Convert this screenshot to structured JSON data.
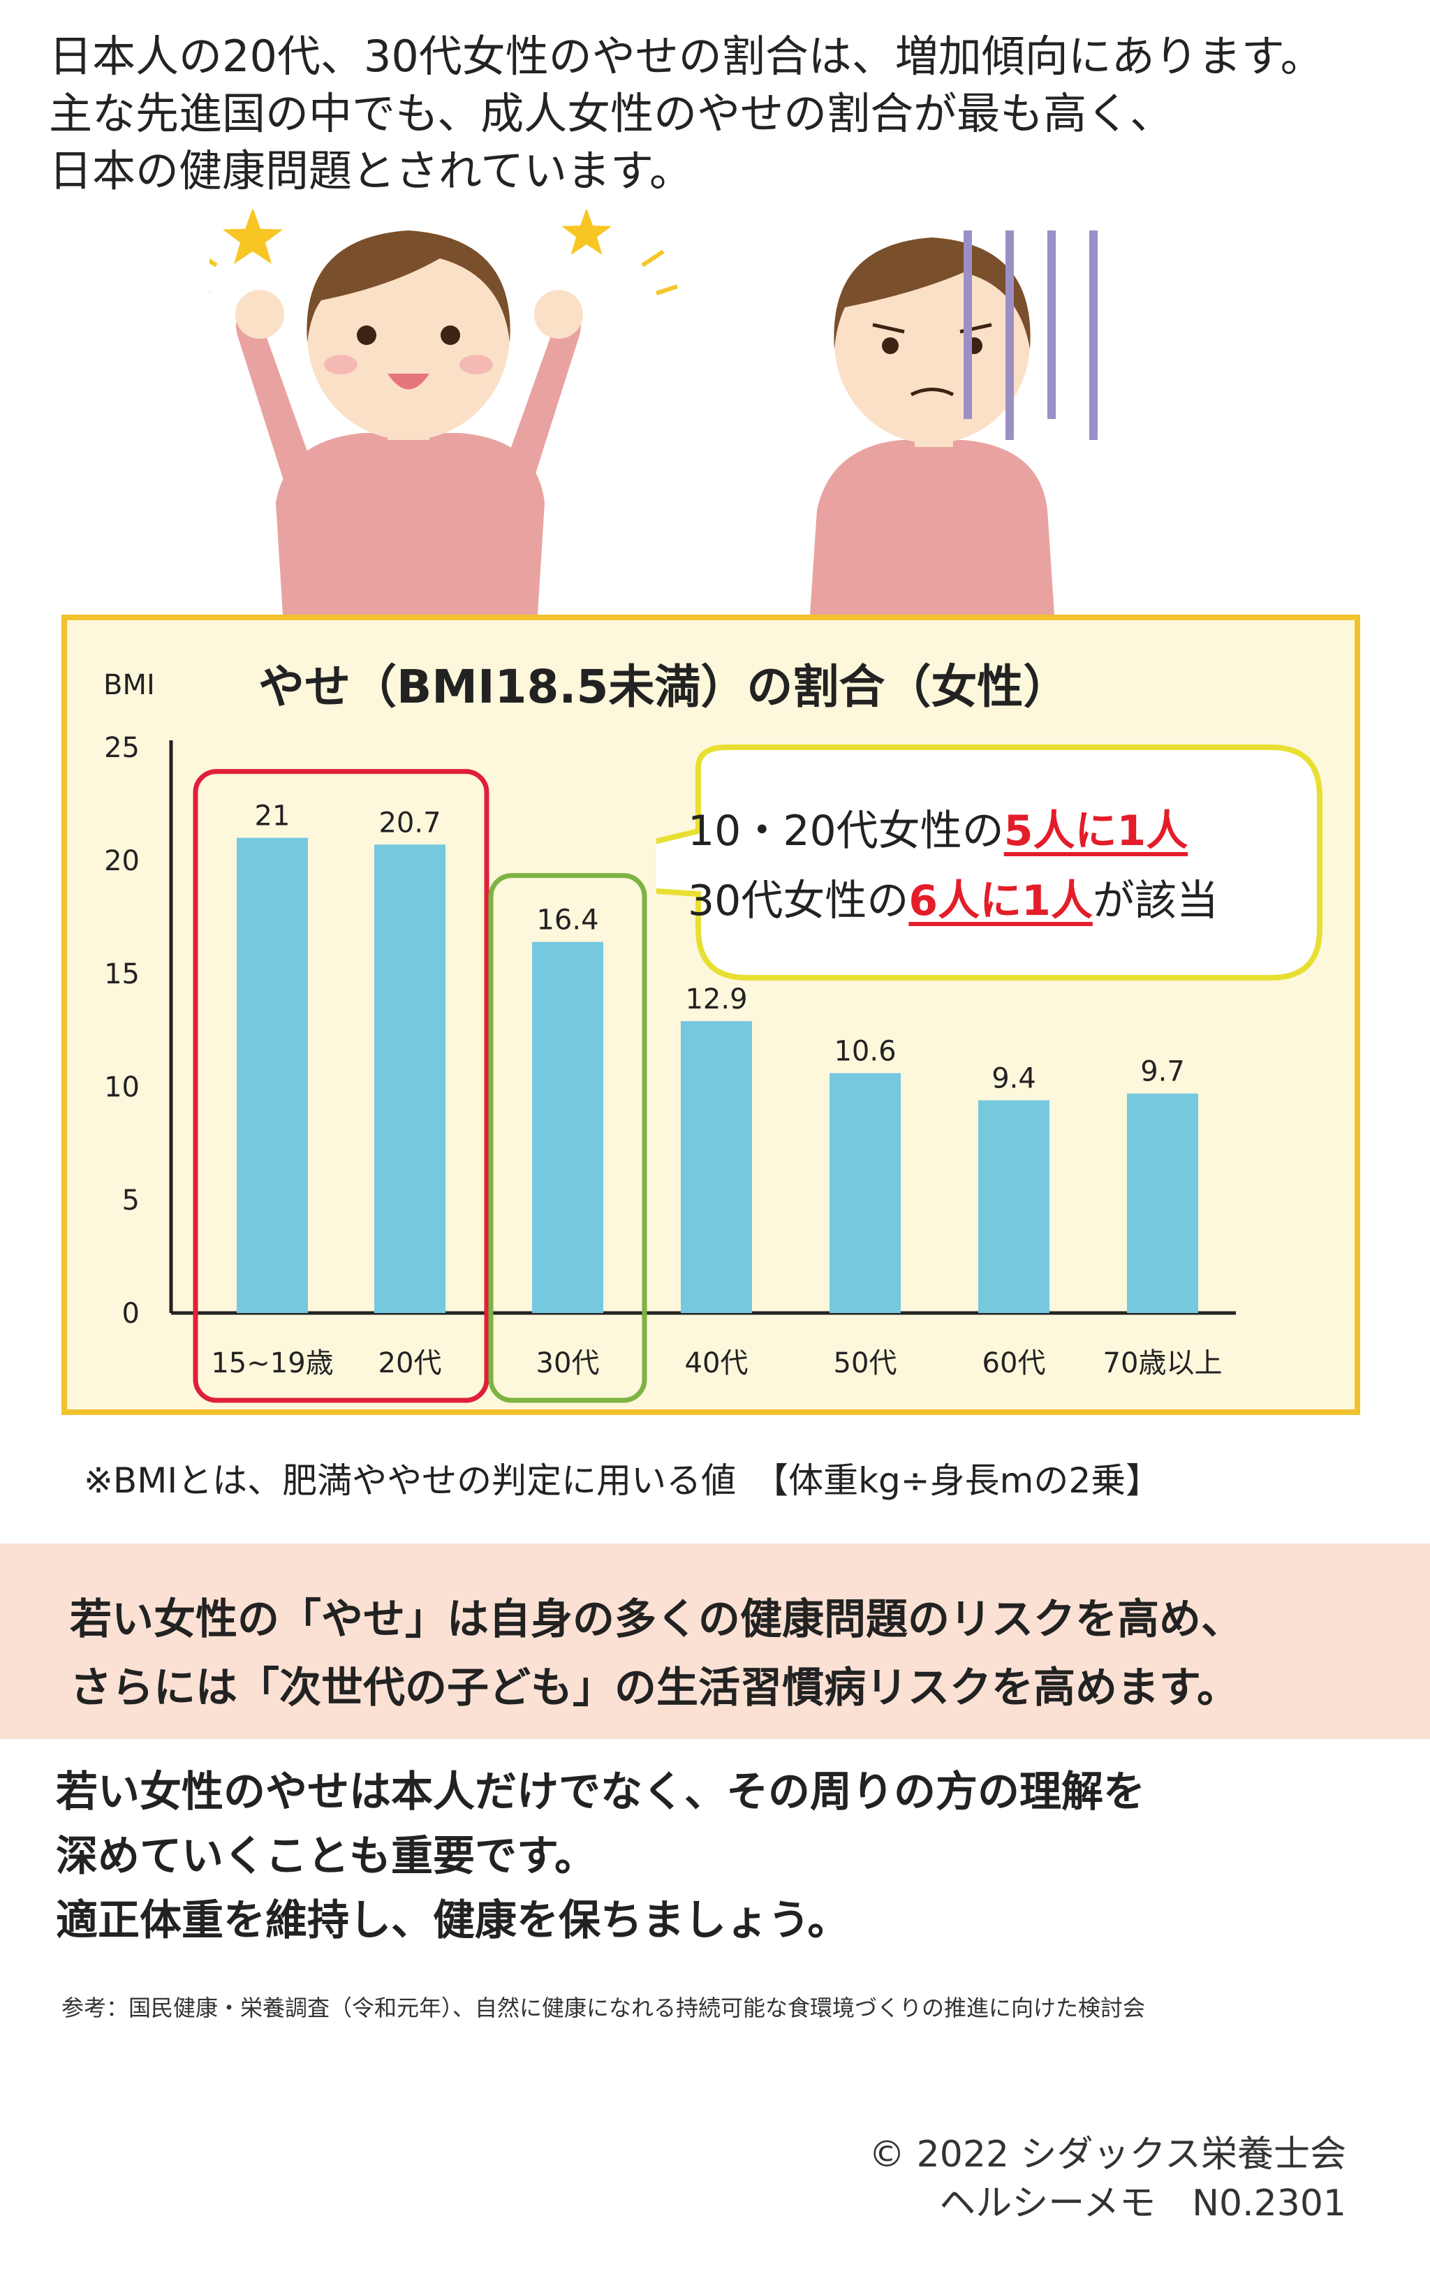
{
  "intro": {
    "line1": "日本人の20代、30代女性のやせの割合は、増加傾向にあります。",
    "line2": "主な先進国の中でも、成人女性のやせの割合が最も高く、",
    "line3": "日本の健康問題とされています。"
  },
  "illustration": {
    "icons": [
      "happy-woman-icon",
      "star-icon",
      "worried-woman-icon"
    ]
  },
  "chart_data": {
    "type": "bar",
    "title": "やせ（BMI18.5未満）の割合（女性）",
    "ylabel": "BMI",
    "xlabel": "",
    "ylim": [
      0,
      25
    ],
    "yticks": [
      "0",
      "5",
      "10",
      "15",
      "20",
      "25"
    ],
    "categories": [
      "15~19歳",
      "20代",
      "30代",
      "40代",
      "50代",
      "60代",
      "70歳以上"
    ],
    "values": [
      21,
      20.7,
      16.4,
      12.9,
      10.6,
      9.4,
      9.7
    ],
    "value_labels": [
      "21",
      "20.7",
      "16.4",
      "12.9",
      "10.6",
      "9.4",
      "9.7"
    ],
    "grid": false,
    "bar_color": "#76c8de",
    "highlight_groups": [
      {
        "categories": [
          "15~19歳",
          "20代"
        ],
        "color": "#e0203a"
      },
      {
        "categories": [
          "30代"
        ],
        "color": "#7cb342"
      }
    ],
    "annotation": {
      "line1_prefix": "10・20代女性の",
      "line1_highlight": "5人に1人",
      "line2_prefix": "30代女性の",
      "line2_highlight": "6人に1人",
      "line2_suffix": "が該当"
    }
  },
  "note": "※BMIとは、肥満ややせの判定に用いる値　【体重kg÷身長mの2乗】",
  "band": {
    "line1": "若い女性の「やせ」は自身の多くの健康問題のリスクを高め、",
    "line2": "さらには「次世代の子ども」の生活習慣病リスクを高めます。"
  },
  "closing": {
    "line1": "若い女性のやせは本人だけでなく、その周りの方の理解を",
    "line2": "深めていくことも重要です。",
    "line3": "適正体重を維持し、健康を保ちましょう。"
  },
  "reference": "参考：国民健康・栄養調査（令和元年）、自然に健康になれる持続可能な食環境づくりの推進に向けた検討会",
  "copyright": {
    "line1": "© 2022 シダックス栄養士会",
    "line2": "ヘルシーメモ　N0.2301"
  },
  "colors": {
    "accent_red": "#e31d2a",
    "box_border": "#f2c12e",
    "box_fill": "#fdf7dc",
    "band_fill": "#fbe1d4"
  }
}
